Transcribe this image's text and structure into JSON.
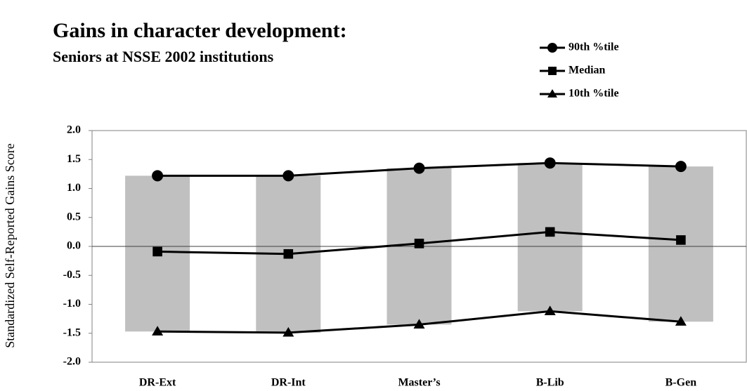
{
  "chart_data": {
    "type": "line",
    "title": "Gains in character development:",
    "subtitle": "Seniors at NSSE 2002 institutions",
    "y_label": "Standardized Self-Reported Gains Score",
    "categories": [
      "DR-Ext",
      "DR-Int",
      "Master’s",
      "B-Lib",
      "B-Gen"
    ],
    "series": [
      {
        "name": "90th %tile",
        "color": "#000000",
        "marker": "circle",
        "values": [
          1.22,
          1.22,
          1.35,
          1.44,
          1.38
        ]
      },
      {
        "name": "Median",
        "color": "#000000",
        "marker": "square",
        "values": [
          -0.09,
          -0.13,
          0.05,
          0.25,
          0.11
        ]
      },
      {
        "name": "10th %tile",
        "color": "#000000",
        "marker": "triangle",
        "values": [
          -1.47,
          -1.49,
          -1.35,
          -1.12,
          -1.3
        ]
      }
    ],
    "range_bar_color": "#c0c0c0",
    "ylim": [
      -2.0,
      2.0
    ],
    "yticks": [
      {
        "value": 2,
        "label": "2.0"
      },
      {
        "value": 1.5,
        "label": "1.5"
      },
      {
        "value": 1,
        "label": "1.0"
      },
      {
        "value": 0.5,
        "label": "0.5"
      },
      {
        "value": 0,
        "label": "0.0"
      },
      {
        "value": -0.5,
        "label": "-0.5"
      },
      {
        "value": -1,
        "label": "-1.0"
      },
      {
        "value": -1.5,
        "label": "-1.5"
      },
      {
        "value": -2,
        "label": "-2.0"
      }
    ],
    "grid": false,
    "legend": "top-right"
  }
}
